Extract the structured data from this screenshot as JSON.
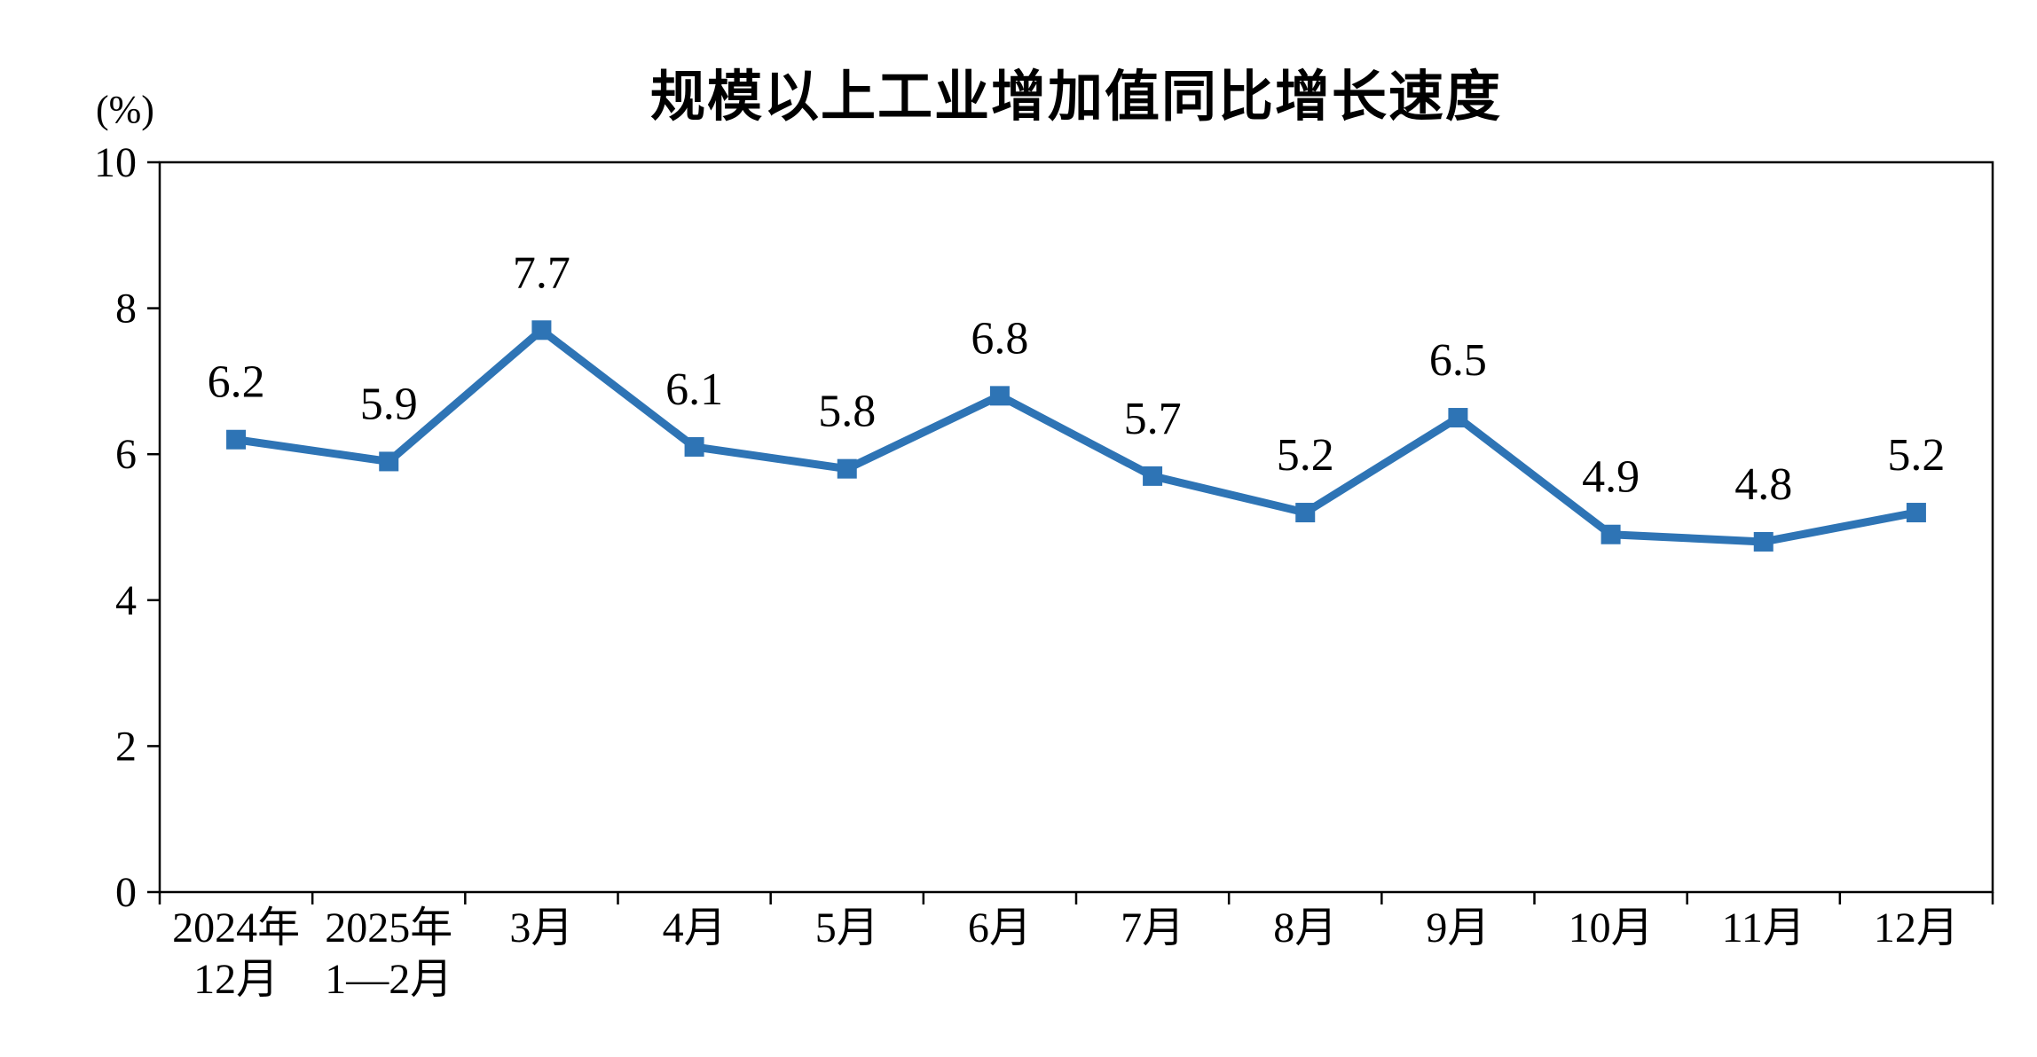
{
  "chart_data": {
    "type": "line",
    "title": "规模以上工业增加值同比增长速度",
    "unit_label": "(%)",
    "categories": [
      "2024年\n12月",
      "2025年\n1—2月",
      "3月",
      "4月",
      "5月",
      "6月",
      "7月",
      "8月",
      "9月",
      "10月",
      "11月",
      "12月"
    ],
    "values": [
      6.2,
      5.9,
      7.7,
      6.1,
      5.8,
      6.8,
      5.7,
      5.2,
      6.5,
      4.9,
      4.8,
      5.2
    ],
    "data_labels": [
      "6.2",
      "5.9",
      "7.7",
      "6.1",
      "5.8",
      "6.8",
      "5.7",
      "5.2",
      "6.5",
      "4.9",
      "4.8",
      "5.2"
    ],
    "ylim": [
      0,
      10
    ],
    "yticks": [
      0,
      2,
      4,
      6,
      8,
      10
    ],
    "line_color": "#2E74B5",
    "axis_color": "#000000",
    "text_color": "#000000",
    "marker": "square",
    "grid": false,
    "legend": "none"
  }
}
